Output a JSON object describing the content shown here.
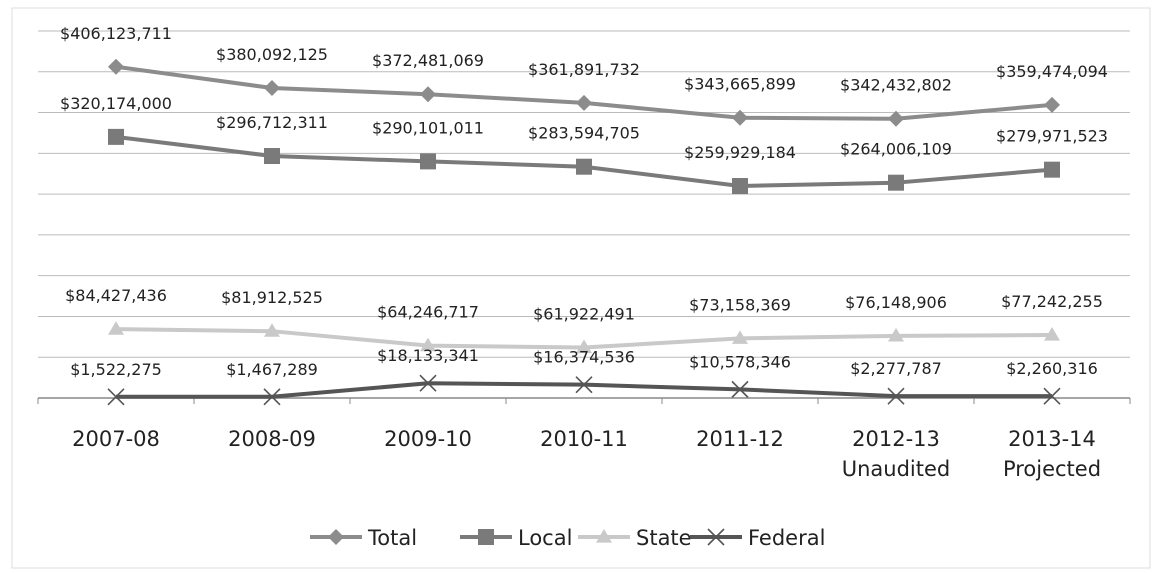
{
  "chart_data": {
    "type": "line",
    "categories": [
      "2007-08",
      "2008-09",
      "2009-10",
      "2010-11",
      "2011-12",
      "2012-13\nUnaudited",
      "2013-14\nProjected"
    ],
    "series": [
      {
        "name": "Total",
        "color": "#8c8c8c",
        "marker": "diamond",
        "values": [
          406123711,
          380092125,
          372481069,
          361891732,
          343665899,
          342432802,
          359474094
        ],
        "value_labels": [
          "$406,123,711",
          "$380,092,125",
          "$372,481,069",
          "$361,891,732",
          "$343,665,899",
          "$342,432,802",
          "$359,474,094"
        ]
      },
      {
        "name": "Local",
        "color": "#7a7a7a",
        "marker": "square",
        "values": [
          320174000,
          296712311,
          290101011,
          283594705,
          259929184,
          264006109,
          279971523
        ],
        "value_labels": [
          "$320,174,000",
          "$296,712,311",
          "$290,101,011",
          "$283,594,705",
          "$259,929,184",
          "$264,006,109",
          "$279,971,523"
        ]
      },
      {
        "name": "State",
        "color": "#c9c9c9",
        "marker": "triangle",
        "values": [
          84427436,
          81912525,
          64246717,
          61922491,
          73158369,
          76148906,
          77242255
        ],
        "value_labels": [
          "$84,427,436",
          "$81,912,525",
          "$64,246,717",
          "$61,922,491",
          "$73,158,369",
          "$76,148,906",
          "$77,242,255"
        ]
      },
      {
        "name": "Federal",
        "color": "#555555",
        "marker": "x",
        "values": [
          1522275,
          1467289,
          18133341,
          16374536,
          10578346,
          2277787,
          2260316
        ],
        "value_labels": [
          "$1,522,275",
          "$1,467,289",
          "$18,133,341",
          "$16,374,536",
          "$10,578,346",
          "$2,277,787",
          "$2,260,316"
        ]
      }
    ],
    "ylim": [
      0,
      450000000
    ],
    "yticks": [
      0,
      50000000,
      100000000,
      150000000,
      200000000,
      250000000,
      300000000,
      350000000,
      400000000,
      450000000
    ],
    "grid": true,
    "legend": "bottom"
  }
}
